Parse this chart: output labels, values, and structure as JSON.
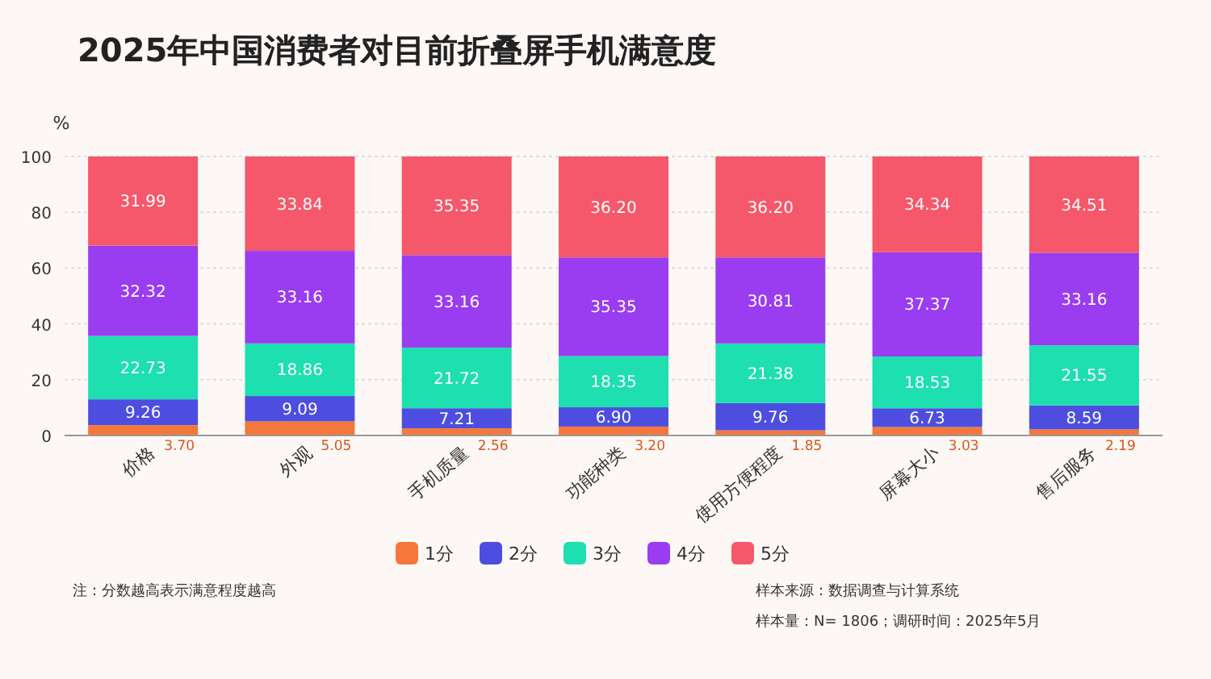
{
  "chart_data": {
    "type": "bar",
    "stacked": true,
    "title": "2025年中国消费者对目前折叠屏手机满意度",
    "ylabel": "%",
    "categories": [
      "价格",
      "外观",
      "手机质量",
      "功能种类",
      "使用方便程度",
      "屏幕大小",
      "售后服务"
    ],
    "series": [
      {
        "name": "1分",
        "color": "#f5773a",
        "values": [
          3.7,
          5.05,
          2.56,
          3.2,
          1.85,
          3.03,
          2.19
        ],
        "value_labels": [
          "3.70",
          "5.05",
          "2.56",
          "3.20",
          "1.85",
          "3.03",
          "2.19"
        ]
      },
      {
        "name": "2分",
        "color": "#4d4ee0",
        "values": [
          9.26,
          9.09,
          7.21,
          6.9,
          9.76,
          6.73,
          8.59
        ],
        "value_labels": [
          "9.26",
          "9.09",
          "7.21",
          "6.90",
          "9.76",
          "6.73",
          "8.59"
        ]
      },
      {
        "name": "3分",
        "color": "#1ddfb0",
        "values": [
          22.73,
          18.86,
          21.72,
          18.35,
          21.38,
          18.53,
          21.55
        ],
        "value_labels": [
          "22.73",
          "18.86",
          "21.72",
          "18.35",
          "21.38",
          "18.53",
          "21.55"
        ]
      },
      {
        "name": "4分",
        "color": "#9a3cf0",
        "values": [
          32.32,
          33.16,
          33.16,
          35.35,
          30.81,
          37.37,
          33.16
        ],
        "value_labels": [
          "32.32",
          "33.16",
          "33.16",
          "35.35",
          "30.81",
          "37.37",
          "33.16"
        ]
      },
      {
        "name": "5分",
        "color": "#f5586a",
        "values": [
          31.99,
          33.84,
          35.35,
          36.2,
          36.2,
          34.34,
          34.51
        ],
        "value_labels": [
          "31.99",
          "33.84",
          "35.35",
          "36.20",
          "36.20",
          "34.34",
          "34.51"
        ]
      }
    ],
    "ylim": [
      0,
      100
    ],
    "yticks": [
      0,
      20,
      40,
      60,
      80,
      100
    ],
    "grid": "y",
    "legend": "bottom",
    "annotations": [
      "注：分数越高表示满意程度越高",
      "样本来源：数据调查与计算系统",
      "样本量：N= 1806；调研时间：2025年5月"
    ]
  }
}
